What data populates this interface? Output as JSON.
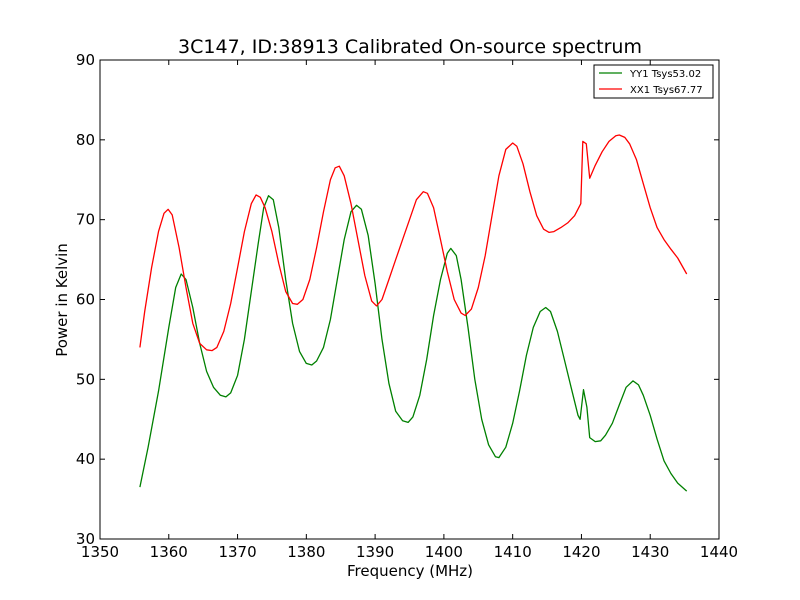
{
  "chart_data": {
    "type": "line",
    "title": "3C147, ID:38913 Calibrated On-source spectrum",
    "xlabel": "Frequency (MHz)",
    "ylabel": "Power in Kelvin",
    "xlim": [
      1350,
      1440
    ],
    "ylim": [
      30,
      90
    ],
    "xticks": [
      1350,
      1360,
      1370,
      1380,
      1390,
      1400,
      1410,
      1420,
      1430,
      1440
    ],
    "yticks": [
      30,
      40,
      50,
      60,
      70,
      80,
      90
    ],
    "grid": false,
    "legend_position": "top-right",
    "series": [
      {
        "name": "YY1 Tsys53.02",
        "color": "#008000",
        "points": [
          [
            1355.8,
            36.5
          ],
          [
            1357.0,
            41.5
          ],
          [
            1358.5,
            48.5
          ],
          [
            1360.0,
            56.5
          ],
          [
            1361.0,
            61.5
          ],
          [
            1361.8,
            63.2
          ],
          [
            1362.5,
            62.5
          ],
          [
            1363.5,
            59.0
          ],
          [
            1364.5,
            54.5
          ],
          [
            1365.5,
            51.0
          ],
          [
            1366.5,
            49.0
          ],
          [
            1367.5,
            48.0
          ],
          [
            1368.3,
            47.8
          ],
          [
            1369.0,
            48.3
          ],
          [
            1370.0,
            50.5
          ],
          [
            1371.0,
            55.0
          ],
          [
            1372.0,
            61.0
          ],
          [
            1373.0,
            67.0
          ],
          [
            1373.8,
            71.5
          ],
          [
            1374.5,
            73.0
          ],
          [
            1375.2,
            72.5
          ],
          [
            1376.0,
            69.0
          ],
          [
            1377.0,
            62.5
          ],
          [
            1378.0,
            57.0
          ],
          [
            1379.0,
            53.5
          ],
          [
            1380.0,
            52.0
          ],
          [
            1380.8,
            51.8
          ],
          [
            1381.5,
            52.3
          ],
          [
            1382.5,
            54.0
          ],
          [
            1383.5,
            57.5
          ],
          [
            1384.5,
            62.5
          ],
          [
            1385.5,
            67.5
          ],
          [
            1386.5,
            71.0
          ],
          [
            1387.3,
            71.8
          ],
          [
            1388.0,
            71.3
          ],
          [
            1389.0,
            68.0
          ],
          [
            1390.0,
            62.0
          ],
          [
            1391.0,
            55.0
          ],
          [
            1392.0,
            49.5
          ],
          [
            1393.0,
            46.0
          ],
          [
            1394.0,
            44.8
          ],
          [
            1394.8,
            44.6
          ],
          [
            1395.5,
            45.3
          ],
          [
            1396.5,
            48.0
          ],
          [
            1397.5,
            52.5
          ],
          [
            1398.5,
            58.0
          ],
          [
            1399.5,
            62.5
          ],
          [
            1400.5,
            65.8
          ],
          [
            1401.0,
            66.4
          ],
          [
            1401.8,
            65.5
          ],
          [
            1402.5,
            62.5
          ],
          [
            1403.5,
            56.5
          ],
          [
            1404.5,
            50.0
          ],
          [
            1405.5,
            45.0
          ],
          [
            1406.5,
            41.8
          ],
          [
            1407.5,
            40.3
          ],
          [
            1408.0,
            40.2
          ],
          [
            1409.0,
            41.5
          ],
          [
            1410.0,
            44.5
          ],
          [
            1411.0,
            48.5
          ],
          [
            1412.0,
            53.0
          ],
          [
            1413.0,
            56.5
          ],
          [
            1414.0,
            58.5
          ],
          [
            1414.8,
            59.0
          ],
          [
            1415.5,
            58.5
          ],
          [
            1416.5,
            56.0
          ],
          [
            1417.5,
            52.5
          ],
          [
            1418.5,
            49.0
          ],
          [
            1419.5,
            45.5
          ],
          [
            1419.8,
            45.0
          ],
          [
            1420.3,
            48.7
          ],
          [
            1420.8,
            46.5
          ],
          [
            1421.2,
            42.7
          ],
          [
            1422.0,
            42.2
          ],
          [
            1422.8,
            42.3
          ],
          [
            1423.5,
            43.0
          ],
          [
            1424.5,
            44.5
          ],
          [
            1425.5,
            46.8
          ],
          [
            1426.5,
            49.0
          ],
          [
            1427.5,
            49.8
          ],
          [
            1428.3,
            49.3
          ],
          [
            1429.0,
            48.0
          ],
          [
            1430.0,
            45.5
          ],
          [
            1431.0,
            42.5
          ],
          [
            1432.0,
            39.8
          ],
          [
            1433.0,
            38.2
          ],
          [
            1434.0,
            37.0
          ],
          [
            1435.3,
            36.0
          ]
        ]
      },
      {
        "name": "XX1 Tsys67.77",
        "color": "#ff0000",
        "points": [
          [
            1355.8,
            54.0
          ],
          [
            1356.5,
            58.5
          ],
          [
            1357.5,
            64.0
          ],
          [
            1358.5,
            68.5
          ],
          [
            1359.3,
            70.8
          ],
          [
            1359.9,
            71.3
          ],
          [
            1360.5,
            70.6
          ],
          [
            1361.5,
            66.5
          ],
          [
            1362.5,
            61.5
          ],
          [
            1363.5,
            57.0
          ],
          [
            1364.5,
            54.5
          ],
          [
            1365.5,
            53.7
          ],
          [
            1366.3,
            53.6
          ],
          [
            1367.0,
            54.0
          ],
          [
            1368.0,
            56.0
          ],
          [
            1369.0,
            59.5
          ],
          [
            1370.0,
            64.0
          ],
          [
            1371.0,
            68.5
          ],
          [
            1372.0,
            72.0
          ],
          [
            1372.7,
            73.1
          ],
          [
            1373.3,
            72.8
          ],
          [
            1374.0,
            71.5
          ],
          [
            1375.0,
            68.5
          ],
          [
            1376.0,
            64.5
          ],
          [
            1377.0,
            61.0
          ],
          [
            1378.0,
            59.5
          ],
          [
            1378.7,
            59.4
          ],
          [
            1379.5,
            60.0
          ],
          [
            1380.5,
            62.5
          ],
          [
            1381.5,
            66.5
          ],
          [
            1382.5,
            71.0
          ],
          [
            1383.5,
            75.0
          ],
          [
            1384.2,
            76.5
          ],
          [
            1384.8,
            76.7
          ],
          [
            1385.5,
            75.5
          ],
          [
            1386.5,
            72.0
          ],
          [
            1387.5,
            67.5
          ],
          [
            1388.5,
            63.0
          ],
          [
            1389.5,
            59.8
          ],
          [
            1390.2,
            59.2
          ],
          [
            1391.0,
            60.0
          ],
          [
            1392.0,
            62.5
          ],
          [
            1393.0,
            65.0
          ],
          [
            1394.0,
            67.5
          ],
          [
            1395.0,
            70.0
          ],
          [
            1396.0,
            72.5
          ],
          [
            1397.0,
            73.5
          ],
          [
            1397.6,
            73.3
          ],
          [
            1398.5,
            71.5
          ],
          [
            1399.5,
            67.5
          ],
          [
            1400.5,
            63.5
          ],
          [
            1401.5,
            60.0
          ],
          [
            1402.5,
            58.3
          ],
          [
            1403.1,
            58.0
          ],
          [
            1404.0,
            58.8
          ],
          [
            1405.0,
            61.5
          ],
          [
            1406.0,
            65.5
          ],
          [
            1407.0,
            70.5
          ],
          [
            1408.0,
            75.5
          ],
          [
            1409.0,
            78.8
          ],
          [
            1410.0,
            79.6
          ],
          [
            1410.6,
            79.2
          ],
          [
            1411.5,
            77.0
          ],
          [
            1412.5,
            73.5
          ],
          [
            1413.5,
            70.5
          ],
          [
            1414.5,
            68.8
          ],
          [
            1415.3,
            68.4
          ],
          [
            1416.0,
            68.5
          ],
          [
            1417.0,
            69.0
          ],
          [
            1418.0,
            69.6
          ],
          [
            1419.0,
            70.5
          ],
          [
            1419.9,
            72.0
          ],
          [
            1420.2,
            79.8
          ],
          [
            1420.7,
            79.5
          ],
          [
            1421.2,
            75.2
          ],
          [
            1422.0,
            76.8
          ],
          [
            1423.0,
            78.5
          ],
          [
            1424.0,
            79.8
          ],
          [
            1425.0,
            80.5
          ],
          [
            1425.5,
            80.6
          ],
          [
            1426.3,
            80.3
          ],
          [
            1427.0,
            79.5
          ],
          [
            1428.0,
            77.5
          ],
          [
            1429.0,
            74.5
          ],
          [
            1430.0,
            71.5
          ],
          [
            1431.0,
            69.0
          ],
          [
            1432.0,
            67.5
          ],
          [
            1433.0,
            66.3
          ],
          [
            1434.0,
            65.2
          ],
          [
            1435.3,
            63.2
          ]
        ]
      }
    ]
  }
}
